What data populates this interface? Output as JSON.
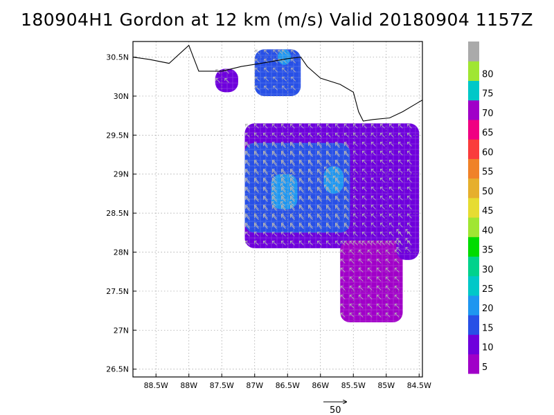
{
  "title": "180904H1 Gordon at 12 km (m/s) Valid 20180904 1157Z",
  "map": {
    "lon_range": [
      -88.85,
      -84.45
    ],
    "lat_range": [
      26.4,
      30.7
    ],
    "lat_ticks": [
      {
        "value": 26.5,
        "label": "26.5N"
      },
      {
        "value": 27.0,
        "label": "27N"
      },
      {
        "value": 27.5,
        "label": "27.5N"
      },
      {
        "value": 28.0,
        "label": "28N"
      },
      {
        "value": 28.5,
        "label": "28.5N"
      },
      {
        "value": 29.0,
        "label": "29N"
      },
      {
        "value": 29.5,
        "label": "29.5N"
      },
      {
        "value": 30.0,
        "label": "30N"
      },
      {
        "value": 30.5,
        "label": "30.5N"
      }
    ],
    "lon_ticks": [
      {
        "value": -88.5,
        "label": "88.5W"
      },
      {
        "value": -88.0,
        "label": "88W"
      },
      {
        "value": -87.5,
        "label": "87.5W"
      },
      {
        "value": -87.0,
        "label": "87W"
      },
      {
        "value": -86.5,
        "label": "86.5W"
      },
      {
        "value": -86.0,
        "label": "86W"
      },
      {
        "value": -85.5,
        "label": "85.5W"
      },
      {
        "value": -85.0,
        "label": "85W"
      },
      {
        "value": -84.5,
        "label": "84.5W"
      }
    ],
    "grid": true,
    "coastline": [
      [
        -88.85,
        30.5
      ],
      [
        -88.6,
        30.47
      ],
      [
        -88.3,
        30.42
      ],
      [
        -88.0,
        30.65
      ],
      [
        -87.85,
        30.32
      ],
      [
        -87.5,
        30.32
      ],
      [
        -87.2,
        30.38
      ],
      [
        -86.9,
        30.42
      ],
      [
        -86.5,
        30.48
      ],
      [
        -86.3,
        30.5
      ],
      [
        -86.2,
        30.38
      ],
      [
        -86.0,
        30.23
      ],
      [
        -85.7,
        30.15
      ],
      [
        -85.5,
        30.05
      ],
      [
        -85.42,
        29.8
      ],
      [
        -85.35,
        29.68
      ],
      [
        -85.2,
        29.7
      ],
      [
        -84.95,
        29.72
      ],
      [
        -84.75,
        29.8
      ],
      [
        -84.55,
        29.9
      ],
      [
        -84.45,
        29.95
      ]
    ]
  },
  "colorbar": {
    "labels": [
      "5",
      "10",
      "15",
      "20",
      "25",
      "30",
      "35",
      "40",
      "45",
      "50",
      "55",
      "60",
      "65",
      "70",
      "75",
      "80"
    ],
    "colors": [
      "#a000c8",
      "#6e00dc",
      "#2850e6",
      "#1e96f0",
      "#00c8c8",
      "#00d28c",
      "#00dc00",
      "#a0e632",
      "#e6dc32",
      "#e6af2d",
      "#f08228",
      "#fa3c3c",
      "#f00082",
      "#a000c8",
      "#00c8c8",
      "#a0e632",
      "#aaaaaa"
    ]
  },
  "wind_fields": [
    {
      "name": "main-band-outer",
      "level": "6-10",
      "color": "#6e00dc",
      "lon": [
        -87.15,
        -84.5
      ],
      "lat": [
        28.05,
        29.65
      ]
    },
    {
      "name": "main-band-core",
      "level": "10-15",
      "color": "#2850e6",
      "lon": [
        -87.15,
        -85.55
      ],
      "lat": [
        28.25,
        29.4
      ]
    },
    {
      "name": "main-band-max-1",
      "level": "15-20",
      "color": "#1e96f0",
      "lon": [
        -86.75,
        -86.35
      ],
      "lat": [
        28.55,
        29.0
      ]
    },
    {
      "name": "main-band-max-2",
      "level": "15-20",
      "color": "#1e96f0",
      "lon": [
        -85.95,
        -85.65
      ],
      "lat": [
        28.75,
        29.1
      ]
    },
    {
      "name": "south-cell",
      "level": "5-10",
      "color": "#a000c8",
      "lon": [
        -85.7,
        -84.75
      ],
      "lat": [
        27.1,
        28.15
      ]
    },
    {
      "name": "north-cell",
      "level": "10-15",
      "color": "#2850e6",
      "lon": [
        -87.0,
        -86.3
      ],
      "lat": [
        30.0,
        30.6
      ]
    },
    {
      "name": "north-cell-max",
      "level": "15-20",
      "color": "#1e96f0",
      "lon": [
        -86.65,
        -86.45
      ],
      "lat": [
        30.4,
        30.6
      ]
    },
    {
      "name": "nw-cell",
      "level": "5-10",
      "color": "#6e00dc",
      "lon": [
        -87.6,
        -87.25
      ],
      "lat": [
        30.05,
        30.35
      ]
    },
    {
      "name": "east-cell",
      "level": "5-10",
      "color": "#6e00dc",
      "lon": [
        -84.85,
        -84.5
      ],
      "lat": [
        27.9,
        28.3
      ]
    }
  ],
  "vector_reference": {
    "label": "50"
  }
}
